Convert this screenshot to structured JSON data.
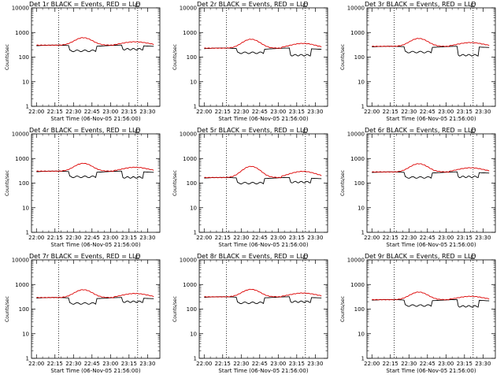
{
  "chart_data": {
    "type": "line",
    "title_suffix": " BLACK = Events, RED = LLD",
    "ylabel": "Counts/sec",
    "xlabel": "Start Time (06-Nov-05 21:56:00)",
    "x_ticks": [
      "22:00",
      "22:15",
      "22:30",
      "22:45",
      "23:00",
      "23:15",
      "23:30"
    ],
    "y_ticks": [
      "1",
      "10",
      "100",
      "1000",
      "10000"
    ],
    "yscale": "log",
    "ylim": [
      1,
      10000
    ],
    "xlim_minutes": [
      -4,
      100
    ],
    "x_tick_minutes": [
      0,
      15,
      30,
      45,
      60,
      75,
      90
    ],
    "vlines_minutes": [
      18,
      82
    ],
    "legend_marker": "⊏",
    "series_names": [
      "Events",
      "LLD"
    ],
    "series_colors": {
      "Events": "#000000",
      "LLD": "#dd0000"
    },
    "detectors": [
      {
        "title": "Det 1r",
        "base": 290,
        "events_dip": [
          180,
          210
        ],
        "lld_peak": 600,
        "lld_end": 420
      },
      {
        "title": "Det 2r",
        "base": 220,
        "events_dip": [
          150,
          120
        ],
        "lld_peak": 520,
        "lld_end": 360
      },
      {
        "title": "Det 3r",
        "base": 260,
        "events_dip": [
          160,
          120
        ],
        "lld_peak": 560,
        "lld_end": 390
      },
      {
        "title": "Det 4r",
        "base": 290,
        "events_dip": [
          180,
          170
        ],
        "lld_peak": 620,
        "lld_end": 440
      },
      {
        "title": "Det 5r",
        "base": 160,
        "events_dip": [
          100,
          110
        ],
        "lld_peak": 470,
        "lld_end": 300
      },
      {
        "title": "Det 6r",
        "base": 270,
        "events_dip": [
          170,
          180
        ],
        "lld_peak": 600,
        "lld_end": 420
      },
      {
        "title": "Det 7r",
        "base": 280,
        "events_dip": [
          170,
          200
        ],
        "lld_peak": 600,
        "lld_end": 430
      },
      {
        "title": "Det 8r",
        "base": 300,
        "events_dip": [
          180,
          200
        ],
        "lld_peak": 620,
        "lld_end": 450
      },
      {
        "title": "Det 9r",
        "base": 230,
        "events_dip": [
          140,
          130
        ],
        "lld_peak": 480,
        "lld_end": 330
      }
    ]
  }
}
